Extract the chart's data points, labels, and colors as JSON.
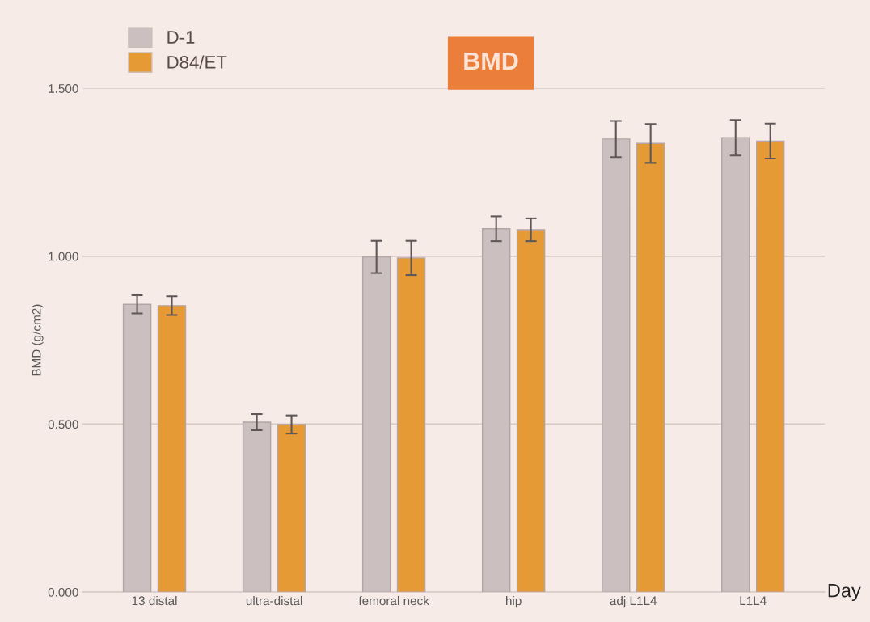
{
  "chart_data": {
    "type": "bar",
    "title": "BMD",
    "xlabel": "Day",
    "ylabel": "BMD (g/cm2)",
    "categories": [
      "13 distal",
      "ultra-distal",
      "femoral neck",
      "hip",
      "adj L1L4",
      "L1L4"
    ],
    "series": [
      {
        "name": "D-1",
        "color": "#ccbfbf",
        "values": [
          0.857,
          0.506,
          0.998,
          1.082,
          1.349,
          1.353
        ],
        "errors": [
          0.027,
          0.024,
          0.048,
          0.037,
          0.054,
          0.053
        ]
      },
      {
        "name": "D84/ET",
        "color": "#e69a35",
        "values": [
          0.853,
          0.499,
          0.995,
          1.079,
          1.336,
          1.343
        ],
        "errors": [
          0.028,
          0.027,
          0.051,
          0.034,
          0.058,
          0.052
        ]
      }
    ],
    "ylim": [
      0,
      1.5
    ],
    "yticks": [
      {
        "value": 0,
        "label": "0.000"
      },
      {
        "value": 0.5,
        "label": "0.500"
      },
      {
        "value": 1.0,
        "label": "1.000"
      },
      {
        "value": 1.5,
        "label": "1.500"
      }
    ],
    "grid": "y",
    "legend": "top left"
  }
}
